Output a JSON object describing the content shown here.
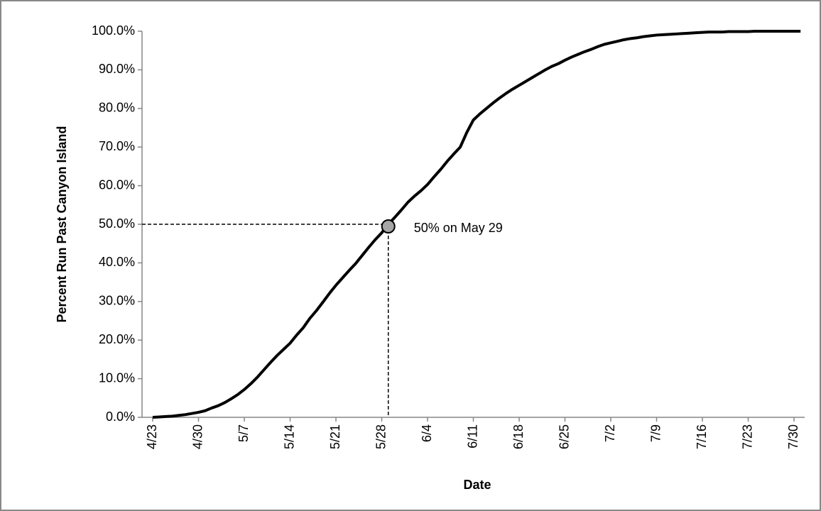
{
  "chart_data": {
    "type": "line",
    "x_label": "Date",
    "y_label": "Percent Run Past Canyon Island",
    "categories": [
      "4/23",
      null,
      null,
      null,
      null,
      null,
      null,
      "4/30",
      null,
      null,
      null,
      null,
      null,
      null,
      "5/7",
      null,
      null,
      null,
      null,
      null,
      null,
      "5/14",
      null,
      null,
      null,
      null,
      null,
      null,
      "5/21",
      null,
      null,
      null,
      null,
      null,
      null,
      "5/28",
      null,
      null,
      null,
      null,
      null,
      null,
      "6/4",
      null,
      null,
      null,
      null,
      null,
      null,
      "6/11",
      null,
      null,
      null,
      null,
      null,
      null,
      "6/18",
      null,
      null,
      null,
      null,
      null,
      null,
      "6/25",
      null,
      null,
      null,
      null,
      null,
      null,
      "7/2",
      null,
      null,
      null,
      null,
      null,
      null,
      "7/9",
      null,
      null,
      null,
      null,
      null,
      null,
      "7/16",
      null,
      null,
      null,
      null,
      null,
      null,
      "7/23",
      null,
      null,
      null,
      null,
      null,
      null,
      "7/30",
      null
    ],
    "series": [
      {
        "color": "#000000",
        "values": [
          0,
          0.1,
          0.2,
          0.3,
          0.5,
          0.7,
          1.0,
          1.3,
          1.7,
          2.4,
          3.0,
          3.8,
          4.8,
          5.9,
          7.2,
          8.7,
          10.4,
          12.3,
          14.2,
          16.0,
          17.6,
          19.2,
          21.3,
          23.2,
          25.6,
          27.6,
          29.8,
          32.1,
          34.2,
          36.1,
          38.0,
          39.8,
          41.9,
          44.0,
          46.0,
          47.8,
          50.0,
          51.8,
          53.7,
          55.7,
          57.3,
          58.7,
          60.3,
          62.3,
          64.2,
          66.3,
          68.2,
          70.0,
          73.8,
          77.0,
          78.6,
          80.0,
          81.4,
          82.7,
          83.9,
          85.0,
          86.0,
          87.0,
          88.0,
          89.0,
          90.0,
          90.9,
          91.6,
          92.5,
          93.3,
          94.0,
          94.7,
          95.3,
          96.0,
          96.6,
          97.0,
          97.4,
          97.8,
          98.1,
          98.3,
          98.6,
          98.8,
          99.0,
          99.1,
          99.2,
          99.3,
          99.4,
          99.5,
          99.6,
          99.7,
          99.8,
          99.8,
          99.8,
          99.9,
          99.9,
          99.9,
          99.9,
          100,
          100,
          100,
          100,
          100,
          100,
          100,
          100
        ]
      }
    ],
    "ylim": [
      0,
      100
    ],
    "yticks": [
      {
        "value": 0,
        "label": "0.0%"
      },
      {
        "value": 10,
        "label": "10.0%"
      },
      {
        "value": 20,
        "label": "20.0%"
      },
      {
        "value": 30,
        "label": "30.0%"
      },
      {
        "value": 40,
        "label": "40.0%"
      },
      {
        "value": 50,
        "label": "50.0%"
      },
      {
        "value": 60,
        "label": "60.0%"
      },
      {
        "value": 70,
        "label": "70.0%"
      },
      {
        "value": 80,
        "label": "80.0%"
      },
      {
        "value": 90,
        "label": "90.0%"
      },
      {
        "value": 100,
        "label": "100.0%"
      }
    ],
    "highlight": {
      "value": 50,
      "label": "50% on May 29",
      "color": "#a6a6a6"
    }
  }
}
